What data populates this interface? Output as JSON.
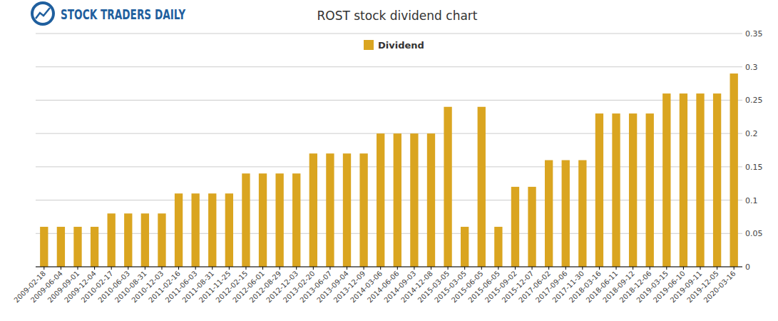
{
  "chart_data": {
    "type": "bar",
    "title": "ROST stock dividend chart",
    "annotations": [
      "STOCK TRADERS DAILY"
    ],
    "categories": [
      "2009-02-18",
      "2009-06-04",
      "2009-09-01",
      "2009-12-04",
      "2010-02-17",
      "2010-06-03",
      "2010-08-31",
      "2010-12-03",
      "2011-02-16",
      "2011-06-03",
      "2011-08-31",
      "2011-11-25",
      "2012-02-15",
      "2012-06-01",
      "2012-08-29",
      "2012-12-03",
      "2013-02-20",
      "2013-06-07",
      "2013-09-04",
      "2013-12-09",
      "2014-03-06",
      "2014-06-06",
      "2014-09-03",
      "2014-12-08",
      "2015-03-05",
      "2015-03-05",
      "2015-06-05",
      "2015-06-05",
      "2015-09-02",
      "2015-12-07",
      "2017-06-02",
      "2017-09-06",
      "2017-11-30",
      "2018-03-16",
      "2018-06-11",
      "2018-09-12",
      "2018-12-06",
      "2019-03-15",
      "2019-06-10",
      "2019-09-11",
      "2019-12-05",
      "2020-03-16"
    ],
    "series": [
      {
        "name": "Dividend",
        "color": "#daa520",
        "values": [
          0.06,
          0.06,
          0.06,
          0.06,
          0.08,
          0.08,
          0.08,
          0.08,
          0.11,
          0.11,
          0.11,
          0.11,
          0.14,
          0.14,
          0.14,
          0.14,
          0.17,
          0.17,
          0.17,
          0.17,
          0.2,
          0.2,
          0.2,
          0.2,
          0.24,
          0.06,
          0.24,
          0.06,
          0.12,
          0.12,
          0.16,
          0.16,
          0.16,
          0.23,
          0.23,
          0.23,
          0.23,
          0.26,
          0.26,
          0.26,
          0.26,
          0.29
        ]
      }
    ],
    "ylim": [
      0,
      0.35
    ],
    "yticks": [
      0,
      0.05,
      0.1,
      0.15,
      0.2,
      0.25,
      0.3,
      0.35
    ],
    "grid": true,
    "legend": "top"
  }
}
